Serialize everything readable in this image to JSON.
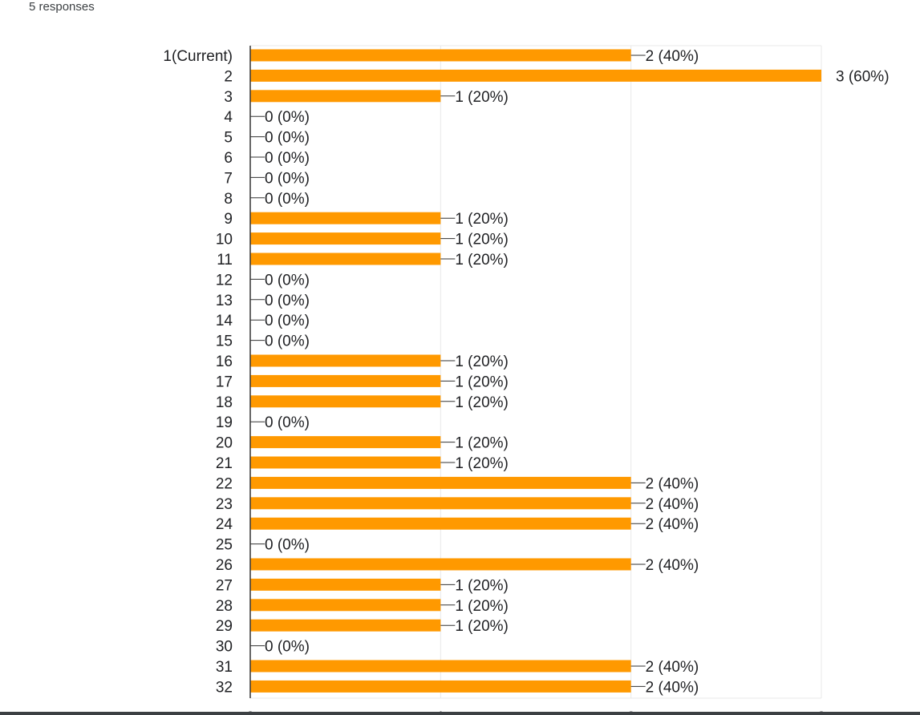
{
  "header": {
    "responses_label": "5 responses"
  },
  "colors": {
    "bar": "#ff9900",
    "grid": "#e8e8e8",
    "axis": "#333333",
    "text": "#202124"
  },
  "chart_data": {
    "type": "bar",
    "orientation": "horizontal",
    "title": "",
    "xlabel": "",
    "ylabel": "",
    "xlim": [
      0,
      3
    ],
    "x_ticks": [
      "0",
      "1",
      "2",
      "3"
    ],
    "grid": true,
    "categories": [
      "1(Current)",
      "2",
      "3",
      "4",
      "5",
      "6",
      "7",
      "8",
      "9",
      "10",
      "11",
      "12",
      "13",
      "14",
      "15",
      "16",
      "17",
      "18",
      "19",
      "20",
      "21",
      "22",
      "23",
      "24",
      "25",
      "26",
      "27",
      "28",
      "29",
      "30",
      "31",
      "32"
    ],
    "values": [
      2,
      3,
      1,
      0,
      0,
      0,
      0,
      0,
      1,
      1,
      1,
      0,
      0,
      0,
      0,
      1,
      1,
      1,
      0,
      1,
      1,
      2,
      2,
      2,
      0,
      2,
      1,
      1,
      1,
      0,
      2,
      2
    ],
    "data_labels": [
      "2 (40%)",
      "3 (60%)",
      "1 (20%)",
      "0 (0%)",
      "0 (0%)",
      "0 (0%)",
      "0 (0%)",
      "0 (0%)",
      "1 (20%)",
      "1 (20%)",
      "1 (20%)",
      "0 (0%)",
      "0 (0%)",
      "0 (0%)",
      "0 (0%)",
      "1 (20%)",
      "1 (20%)",
      "1 (20%)",
      "0 (0%)",
      "1 (20%)",
      "1 (20%)",
      "2 (40%)",
      "2 (40%)",
      "2 (40%)",
      "0 (0%)",
      "2 (40%)",
      "1 (20%)",
      "1 (20%)",
      "1 (20%)",
      "0 (0%)",
      "2 (40%)",
      "2 (40%)"
    ]
  }
}
